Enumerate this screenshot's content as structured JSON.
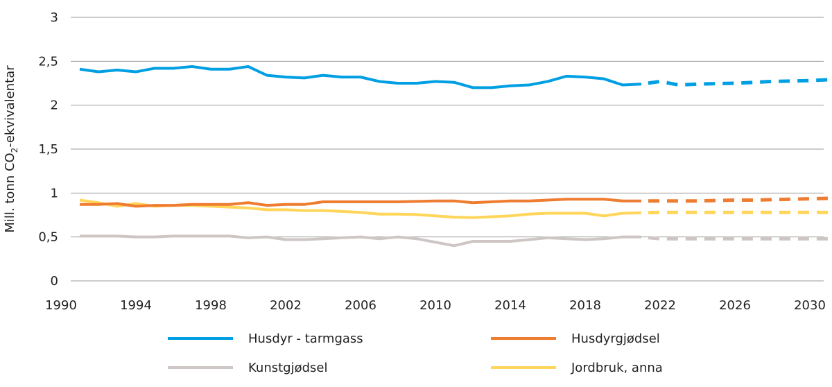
{
  "chart_data": {
    "type": "line",
    "title": "",
    "xlabel": "",
    "ylabel": "Mill. tonn CO2-ekvivalentar",
    "ylabel_parts": {
      "prefix": "Mill. tonn CO",
      "sub": "2",
      "suffix": "-ekvivalentar"
    },
    "xlim": [
      1990,
      2031.5
    ],
    "ylim": [
      0,
      3
    ],
    "x_ticks": [
      1990,
      1994,
      1998,
      2002,
      2006,
      2010,
      2014,
      2018,
      2022,
      2026,
      2030
    ],
    "y_ticks": [
      0,
      0.5,
      1,
      1.5,
      2,
      2.5,
      3
    ],
    "y_tick_labels": [
      "0",
      "0,5",
      "1",
      "1,5",
      "2",
      "2,5",
      "3"
    ],
    "grid": true,
    "legend_position": "bottom",
    "historical_years": [
      1991,
      1992,
      1993,
      1994,
      1995,
      1996,
      1997,
      1998,
      1999,
      2000,
      2001,
      2002,
      2003,
      2004,
      2005,
      2006,
      2007,
      2008,
      2009,
      2010,
      2011,
      2012,
      2013,
      2014,
      2015,
      2016,
      2017,
      2018,
      2019,
      2020,
      2021
    ],
    "projection_years": [
      2021,
      2022,
      2023,
      2024,
      2025,
      2026,
      2027,
      2028,
      2029,
      2030,
      2031
    ],
    "series": [
      {
        "name": "Husdyr - tarmgass",
        "color": "#009fe3",
        "values": [
          2.41,
          2.38,
          2.4,
          2.38,
          2.42,
          2.42,
          2.44,
          2.41,
          2.41,
          2.44,
          2.34,
          2.32,
          2.31,
          2.34,
          2.32,
          2.32,
          2.27,
          2.25,
          2.25,
          2.27,
          2.26,
          2.2,
          2.2,
          2.22,
          2.23,
          2.27,
          2.33,
          2.32,
          2.3,
          2.23,
          2.24
        ],
        "projection": [
          2.24,
          2.27,
          2.23,
          2.24,
          2.245,
          2.25,
          2.26,
          2.27,
          2.275,
          2.28,
          2.29
        ]
      },
      {
        "name": "Husdyrgjødsel",
        "color": "#ee7d31",
        "values": [
          0.87,
          0.87,
          0.88,
          0.85,
          0.86,
          0.86,
          0.87,
          0.87,
          0.87,
          0.89,
          0.86,
          0.87,
          0.87,
          0.9,
          0.9,
          0.9,
          0.9,
          0.9,
          0.905,
          0.91,
          0.91,
          0.89,
          0.9,
          0.91,
          0.91,
          0.92,
          0.93,
          0.93,
          0.93,
          0.91,
          0.91
        ],
        "projection": [
          0.91,
          0.91,
          0.91,
          0.91,
          0.915,
          0.92,
          0.92,
          0.925,
          0.93,
          0.935,
          0.94
        ]
      },
      {
        "name": "Kunstgjødsel",
        "color": "#cdc6c4",
        "values": [
          0.51,
          0.51,
          0.51,
          0.5,
          0.5,
          0.51,
          0.51,
          0.51,
          0.51,
          0.49,
          0.5,
          0.47,
          0.47,
          0.48,
          0.49,
          0.5,
          0.48,
          0.5,
          0.48,
          0.44,
          0.4,
          0.45,
          0.45,
          0.45,
          0.47,
          0.49,
          0.48,
          0.47,
          0.48,
          0.5,
          0.5
        ],
        "projection": [
          0.5,
          0.48,
          0.48,
          0.48,
          0.48,
          0.48,
          0.48,
          0.48,
          0.48,
          0.48,
          0.48
        ]
      },
      {
        "name": "Jordbruk, anna",
        "color": "#ffd55a",
        "values": [
          0.92,
          0.89,
          0.85,
          0.88,
          0.85,
          0.86,
          0.86,
          0.85,
          0.84,
          0.83,
          0.81,
          0.81,
          0.8,
          0.8,
          0.79,
          0.78,
          0.76,
          0.76,
          0.755,
          0.74,
          0.725,
          0.72,
          0.73,
          0.74,
          0.76,
          0.77,
          0.77,
          0.77,
          0.74,
          0.77,
          0.775
        ],
        "projection": [
          0.775,
          0.78,
          0.78,
          0.78,
          0.78,
          0.78,
          0.78,
          0.78,
          0.78,
          0.78,
          0.78
        ]
      }
    ]
  }
}
